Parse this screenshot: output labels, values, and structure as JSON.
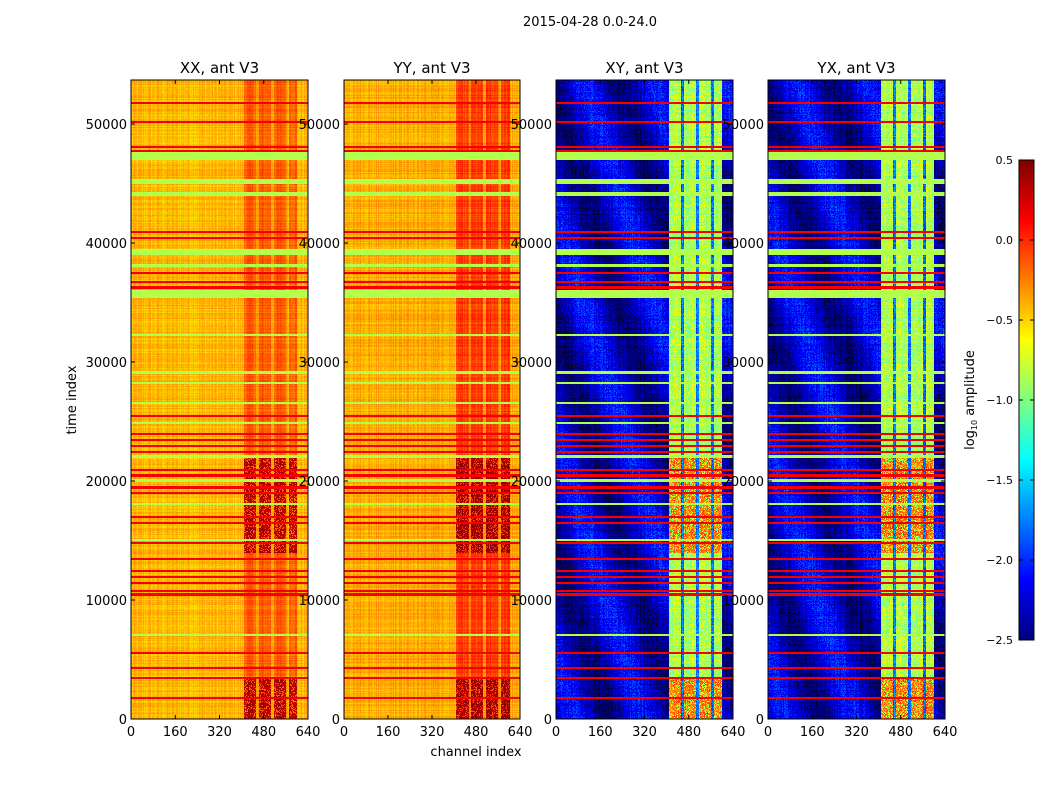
{
  "chart_data": {
    "type": "heatmap",
    "title": "2015-04-28 0.0-24.0",
    "xlabel": "channel index",
    "ylabel": "time index",
    "xlim": [
      0,
      640
    ],
    "ylim": [
      0,
      53700
    ],
    "xticks": [
      "0",
      "160",
      "320",
      "480",
      "640"
    ],
    "yticks": [
      "0",
      "10000",
      "20000",
      "30000",
      "40000",
      "50000"
    ],
    "xtick_values": [
      0,
      160,
      320,
      480,
      640
    ],
    "ytick_values": [
      0,
      10000,
      20000,
      30000,
      40000,
      50000
    ],
    "colormap": "jet",
    "colorbar": {
      "label_main": "log",
      "label_sub": "10",
      "label_rest": " amplitude",
      "range": [
        -2.5,
        0.5
      ],
      "ticks": [
        "0.5",
        "0.0",
        "−0.5",
        "−1.0",
        "−1.5",
        "−2.0",
        "−2.5"
      ],
      "tick_values": [
        0.5,
        0.0,
        -0.5,
        -1.0,
        -1.5,
        -2.0,
        -2.5
      ]
    },
    "panels": [
      {
        "title": "XX, ant V3",
        "base": -0.42,
        "band": -0.15,
        "gap": -0.35,
        "hot": 0.35
      },
      {
        "title": "YY, ant V3",
        "base": -0.38,
        "band": -0.05,
        "gap": -0.3,
        "hot": 0.4
      },
      {
        "title": "XY, ant V3",
        "base": -2.3,
        "band": -0.85,
        "gap": -1.8,
        "hot": -0.2
      },
      {
        "title": "YX, ant V3",
        "base": -2.3,
        "band": -0.85,
        "gap": -1.8,
        "hot": -0.2
      }
    ],
    "high_channel_band": [
      405,
      600
    ],
    "channel_gaps": [
      456,
      510,
      564
    ],
    "hot_time_ranges": [
      [
        0,
        3500
      ],
      [
        14000,
        22000
      ]
    ],
    "flag_red_rows": [
      51800,
      50200,
      48100,
      47800,
      41000,
      40500,
      37500,
      36800,
      36300,
      25500,
      24000,
      23500,
      23000,
      22500,
      21000,
      20500,
      19500,
      19000,
      17000,
      16500,
      14800,
      13500,
      12500,
      12000,
      11500,
      10800,
      10500,
      5600,
      4300,
      3500,
      1800
    ],
    "flag_green_bands": [
      [
        47000,
        47700
      ],
      [
        45000,
        45400
      ],
      [
        44000,
        44300
      ],
      [
        39000,
        39500
      ],
      [
        38000,
        38300
      ],
      [
        35400,
        36100
      ],
      [
        32200,
        32400
      ],
      [
        29000,
        29300
      ],
      [
        28200,
        28400
      ],
      [
        26500,
        26700
      ],
      [
        24800,
        25000
      ],
      [
        22000,
        22200
      ],
      [
        20000,
        20200
      ],
      [
        18000,
        18200
      ],
      [
        15000,
        15200
      ],
      [
        7000,
        7200
      ]
    ]
  }
}
